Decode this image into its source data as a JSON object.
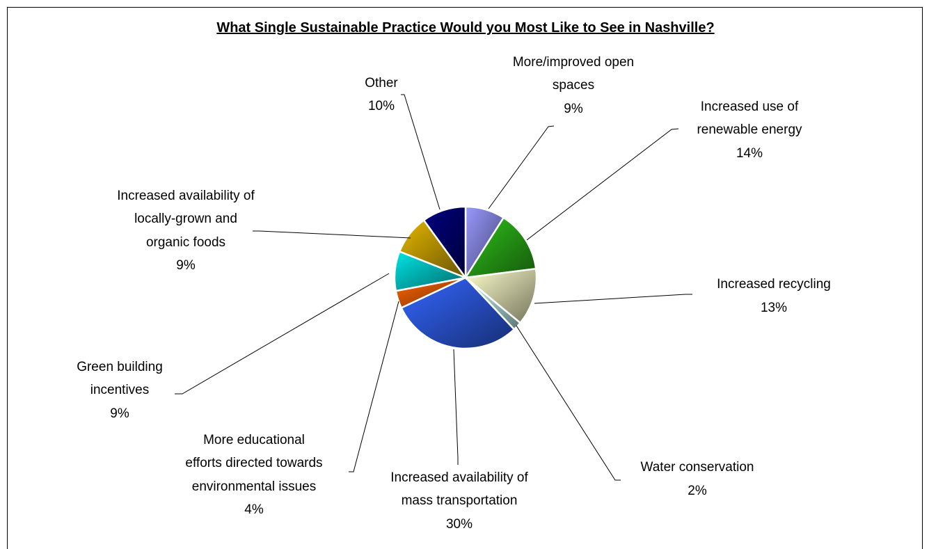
{
  "chart_data": {
    "type": "pie",
    "title": "What Single Sustainable Practice Would you Most Like to See in Nashville?",
    "slices": [
      {
        "label": "More/improved open spaces",
        "value": 9,
        "value_label": "9%",
        "color": "#9999ff"
      },
      {
        "label": "Increased use of renewable energy",
        "value": 14,
        "value_label": "14%",
        "color": "#2fc21a"
      },
      {
        "label": "Increased recycling",
        "value": 13,
        "value_label": "13%",
        "color": "#ffffcc"
      },
      {
        "label": "Water conservation",
        "value": 2,
        "value_label": "2%",
        "color": "#ccffff"
      },
      {
        "label": "Increased availability of mass transportation",
        "value": 30,
        "value_label": "30%",
        "color": "#3366ff"
      },
      {
        "label": "More educational efforts directed towards environmental issues",
        "value": 4,
        "value_label": "4%",
        "color": "#ff6600"
      },
      {
        "label": "Green building incentives",
        "value": 9,
        "value_label": "9%",
        "color": "#00e5e5"
      },
      {
        "label": "Increased availability of locally-grown and organic foods",
        "value": 9,
        "value_label": "9%",
        "color": "#e6b800"
      },
      {
        "label": "Other",
        "value": 10,
        "value_label": "10%",
        "color": "#000080"
      }
    ],
    "legend": "none"
  }
}
